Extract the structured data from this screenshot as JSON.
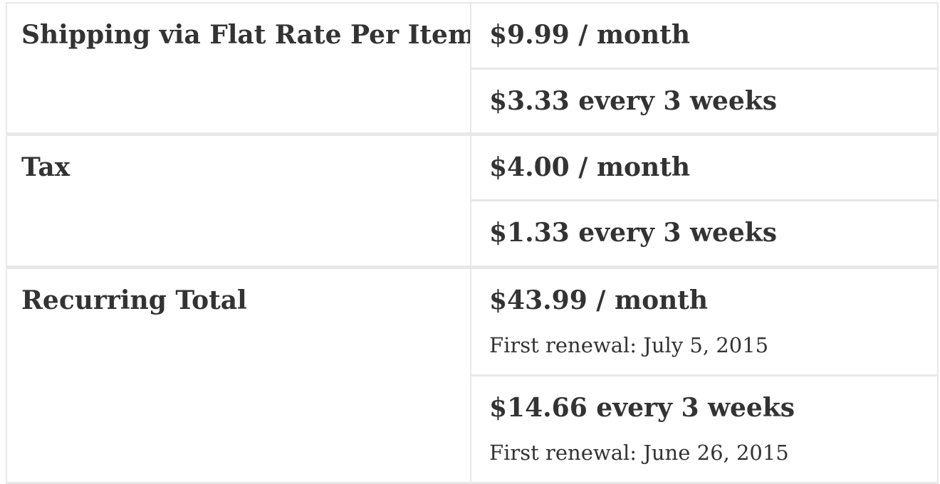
{
  "table": {
    "name": "recurring-cart-totals",
    "colors": {
      "background": "#ffffff",
      "border": "#e8e8e8",
      "text": "#333333"
    },
    "rows": [
      {
        "label": "Shipping via Flat Rate Per Item",
        "values": [
          {
            "amount": "$9.99 / month"
          },
          {
            "amount": "$3.33 every 3 weeks"
          }
        ]
      },
      {
        "label": "Tax",
        "values": [
          {
            "amount": "$4.00 / month"
          },
          {
            "amount": "$1.33 every 3 weeks"
          }
        ]
      },
      {
        "label": "Recurring Total",
        "values": [
          {
            "amount": "$43.99 / month",
            "note": "First renewal: July 5, 2015"
          },
          {
            "amount": "$14.66 every 3 weeks",
            "note": "First renewal: June 26, 2015"
          }
        ]
      }
    ]
  }
}
